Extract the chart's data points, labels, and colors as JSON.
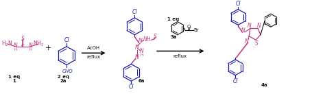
{
  "bg_color": "#ffffff",
  "magenta": "#c0357a",
  "blue": "#1a1aaa",
  "black": "#111111",
  "fig_width": 4.74,
  "fig_height": 1.37,
  "rxn1_top": "AcOH",
  "rxn1_bot": "reflux",
  "rxn2_top1": "1 eq",
  "rxn2_top2": "3a",
  "rxn2_bot": "reflux",
  "label1": "1 eq",
  "label1b": "1",
  "label2": "2 eq",
  "label2b": "2a",
  "label6a": "6a",
  "label4a": "4a"
}
